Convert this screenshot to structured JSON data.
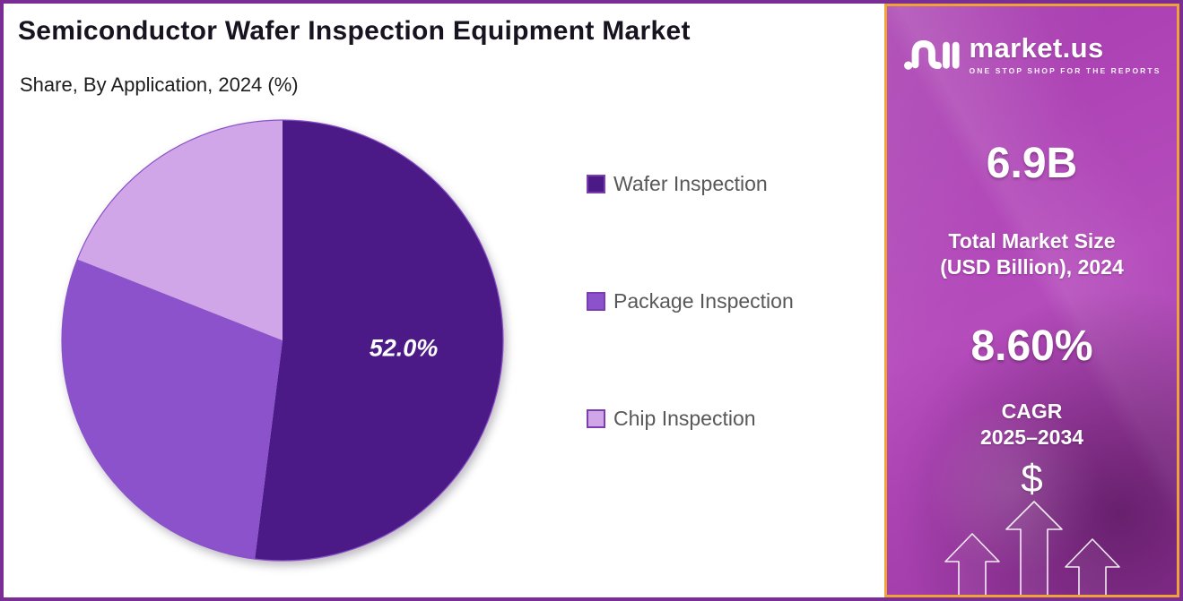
{
  "chart_data": {
    "type": "pie",
    "title": "Semiconductor Wafer Inspection Equipment Market",
    "subtitle": "Share, By Application, 2024 (%)",
    "labels": [
      "Wafer Inspection",
      "Package Inspection",
      "Chip Inspection"
    ],
    "values": [
      52.0,
      29.0,
      19.0
    ],
    "colors": [
      "#4b1a87",
      "#8b52cc",
      "#d0a6e8"
    ],
    "slice_outline": "#8a52c8",
    "start_angle": 0,
    "direction": "clockwise",
    "data_labels": [
      {
        "index": 0,
        "text": "52.0%"
      }
    ],
    "legend_position": "right"
  },
  "legend": {
    "swatch_border": "#7b3eb0",
    "text_color": "#58585a"
  },
  "sidebar": {
    "brand": "market.us",
    "tagline": "ONE STOP SHOP FOR THE REPORTS",
    "stat_value_1": "6.9B",
    "stat_label_1_line1": "Total Market Size",
    "stat_label_1_line2": "(USD Billion), 2024",
    "stat_value_2": "8.60%",
    "stat_label_2_line1": "CAGR",
    "stat_label_2_line2": "2025–2034",
    "dollar_symbol": "$"
  },
  "colors": {
    "frame_border": "#7b2d96",
    "sidebar_border": "#efa236",
    "sidebar_bg": "#ab41b2",
    "title_text": "#17131f"
  }
}
